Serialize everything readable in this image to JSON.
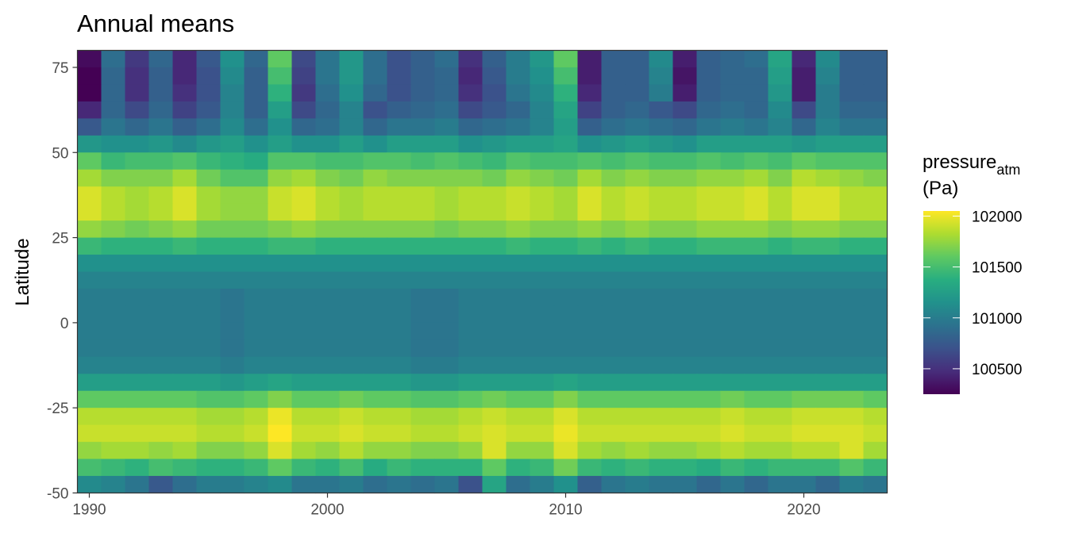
{
  "chart_data": {
    "type": "heatmap",
    "title": "Annual means",
    "xlabel": "",
    "ylabel": "Latitude",
    "x_ticks": [
      1990,
      2000,
      2010,
      2020
    ],
    "y_ticks": [
      75,
      50,
      25,
      0,
      -25,
      -50
    ],
    "xlim": [
      1989.5,
      2023.5
    ],
    "ylim": [
      -50,
      80
    ],
    "years": [
      1990,
      1991,
      1992,
      1993,
      1994,
      1995,
      1996,
      1997,
      1998,
      1999,
      2000,
      2001,
      2002,
      2003,
      2004,
      2005,
      2006,
      2007,
      2008,
      2009,
      2010,
      2011,
      2012,
      2013,
      2014,
      2015,
      2016,
      2017,
      2018,
      2019,
      2020,
      2021,
      2022,
      2023
    ],
    "latitude_bands": [
      {
        "lat": 77.5,
        "values": [
          100300,
          100900,
          100550,
          100850,
          100450,
          100750,
          101150,
          100850,
          101600,
          100650,
          100950,
          101200,
          100900,
          100700,
          100800,
          100900,
          100500,
          100800,
          101000,
          101200,
          101600,
          100400,
          100800,
          100800,
          101100,
          100400,
          100800,
          100850,
          100900,
          101300,
          100450,
          101100,
          100800,
          100800
        ]
      },
      {
        "lat": 72.5,
        "values": [
          100250,
          100850,
          100500,
          100800,
          100450,
          100700,
          101100,
          100800,
          101500,
          100600,
          100950,
          101200,
          100900,
          100700,
          100800,
          100850,
          100450,
          100750,
          101000,
          101150,
          101500,
          100400,
          100800,
          100800,
          101050,
          100350,
          100800,
          100850,
          100850,
          101250,
          100400,
          101050,
          100800,
          100800
        ]
      },
      {
        "lat": 67.5,
        "values": [
          100250,
          100850,
          100500,
          100800,
          100500,
          100700,
          101050,
          100800,
          101400,
          100550,
          100900,
          101150,
          100850,
          100700,
          100800,
          100850,
          100500,
          100700,
          100950,
          101100,
          101400,
          100450,
          100800,
          100800,
          101000,
          100400,
          100800,
          100850,
          100850,
          101200,
          100400,
          101000,
          100800,
          100800
        ]
      },
      {
        "lat": 62.5,
        "values": [
          100450,
          100850,
          100650,
          100850,
          100600,
          100750,
          101050,
          100800,
          101250,
          100650,
          100850,
          101050,
          100700,
          100800,
          100850,
          100900,
          100650,
          100750,
          100850,
          101050,
          101300,
          100600,
          100800,
          100850,
          100750,
          100650,
          100850,
          100900,
          100850,
          101100,
          100650,
          101000,
          100850,
          100850
        ]
      },
      {
        "lat": 57.5,
        "values": [
          100750,
          100950,
          100850,
          100950,
          100800,
          100900,
          101100,
          100900,
          101150,
          100850,
          100900,
          101050,
          100850,
          100950,
          100950,
          101000,
          100850,
          100900,
          100950,
          101050,
          101250,
          100800,
          100900,
          100950,
          100900,
          100850,
          100950,
          101000,
          100950,
          101050,
          100850,
          101050,
          100950,
          100950
        ]
      },
      {
        "lat": 52.5,
        "values": [
          101200,
          101150,
          101150,
          101200,
          101100,
          101200,
          101250,
          101150,
          101250,
          101150,
          101150,
          101250,
          101150,
          101250,
          101250,
          101250,
          101150,
          101200,
          101250,
          101250,
          101300,
          101150,
          101200,
          101250,
          101200,
          101150,
          101250,
          101250,
          101250,
          101250,
          101200,
          101250,
          101250,
          101250
        ]
      },
      {
        "lat": 47.5,
        "values": [
          101600,
          101450,
          101500,
          101500,
          101550,
          101450,
          101400,
          101350,
          101550,
          101550,
          101500,
          101500,
          101550,
          101550,
          101500,
          101550,
          101500,
          101450,
          101550,
          101500,
          101500,
          101550,
          101500,
          101550,
          101500,
          101500,
          101550,
          101500,
          101550,
          101500,
          101600,
          101550,
          101550,
          101550
        ]
      },
      {
        "lat": 42.5,
        "values": [
          101800,
          101700,
          101700,
          101700,
          101800,
          101650,
          101550,
          101550,
          101750,
          101800,
          101700,
          101650,
          101750,
          101700,
          101700,
          101700,
          101700,
          101650,
          101750,
          101700,
          101650,
          101800,
          101700,
          101750,
          101700,
          101700,
          101750,
          101750,
          101800,
          101700,
          101850,
          101800,
          101750,
          101700
        ]
      },
      {
        "lat": 37.5,
        "values": [
          101950,
          101850,
          101800,
          101850,
          101950,
          101800,
          101750,
          101750,
          101900,
          101950,
          101850,
          101800,
          101850,
          101850,
          101850,
          101800,
          101850,
          101850,
          101900,
          101850,
          101800,
          101950,
          101850,
          101900,
          101850,
          101850,
          101900,
          101900,
          101950,
          101850,
          101950,
          101950,
          101850,
          101850
        ]
      },
      {
        "lat": 32.5,
        "values": [
          101950,
          101850,
          101800,
          101850,
          101950,
          101800,
          101750,
          101750,
          101900,
          101950,
          101850,
          101800,
          101850,
          101850,
          101850,
          101800,
          101850,
          101850,
          101900,
          101850,
          101800,
          101950,
          101850,
          101900,
          101850,
          101850,
          101900,
          101900,
          101950,
          101850,
          101950,
          101950,
          101850,
          101850
        ]
      },
      {
        "lat": 27.5,
        "values": [
          101750,
          101700,
          101650,
          101700,
          101750,
          101650,
          101650,
          101650,
          101700,
          101750,
          101700,
          101700,
          101700,
          101700,
          101700,
          101650,
          101700,
          101700,
          101750,
          101700,
          101700,
          101750,
          101700,
          101750,
          101700,
          101700,
          101750,
          101750,
          101750,
          101700,
          101750,
          101750,
          101700,
          101700
        ]
      },
      {
        "lat": 22.5,
        "values": [
          101450,
          101400,
          101400,
          101400,
          101450,
          101400,
          101400,
          101400,
          101450,
          101450,
          101400,
          101400,
          101400,
          101400,
          101400,
          101400,
          101400,
          101400,
          101450,
          101400,
          101400,
          101450,
          101400,
          101450,
          101400,
          101400,
          101450,
          101450,
          101450,
          101400,
          101450,
          101450,
          101400,
          101400
        ]
      },
      {
        "lat": 17.5,
        "values": [
          101150,
          101150,
          101150,
          101150,
          101150,
          101150,
          101150,
          101150,
          101150,
          101150,
          101150,
          101150,
          101150,
          101150,
          101150,
          101150,
          101150,
          101150,
          101150,
          101150,
          101150,
          101150,
          101150,
          101150,
          101150,
          101150,
          101150,
          101150,
          101150,
          101150,
          101150,
          101150,
          101150,
          101150
        ]
      },
      {
        "lat": 12.5,
        "values": [
          101050,
          101050,
          101050,
          101050,
          101050,
          101050,
          101050,
          101050,
          101050,
          101050,
          101050,
          101050,
          101050,
          101050,
          101050,
          101050,
          101050,
          101050,
          101050,
          101050,
          101050,
          101050,
          101050,
          101050,
          101050,
          101050,
          101050,
          101050,
          101050,
          101050,
          101050,
          101050,
          101050,
          101050
        ]
      },
      {
        "lat": 7.5,
        "values": [
          101000,
          101000,
          101000,
          101000,
          101000,
          101000,
          100950,
          101000,
          101000,
          101000,
          101000,
          101000,
          101000,
          101000,
          100950,
          100950,
          101000,
          101000,
          101000,
          101000,
          101000,
          101000,
          101000,
          101000,
          101000,
          101000,
          101000,
          101000,
          101000,
          101000,
          101000,
          101000,
          101000,
          101000
        ]
      },
      {
        "lat": 2.5,
        "values": [
          101000,
          101000,
          101000,
          101000,
          101000,
          101000,
          100950,
          101000,
          101000,
          101000,
          101000,
          101000,
          101000,
          101000,
          100950,
          100950,
          101000,
          101000,
          101000,
          101000,
          101000,
          101000,
          101000,
          101000,
          101000,
          101000,
          101000,
          101000,
          101000,
          101000,
          101000,
          101000,
          101000,
          101000
        ]
      },
      {
        "lat": -2.5,
        "values": [
          101000,
          101000,
          101000,
          101000,
          101000,
          101000,
          100950,
          101000,
          101000,
          101000,
          101000,
          101000,
          101000,
          101000,
          100950,
          100950,
          101000,
          101000,
          101000,
          101000,
          101000,
          101000,
          101000,
          101000,
          101000,
          101000,
          101000,
          101000,
          101000,
          101000,
          101000,
          101000,
          101000,
          101000
        ]
      },
      {
        "lat": -7.5,
        "values": [
          101000,
          101000,
          101000,
          101000,
          101000,
          101000,
          100950,
          101000,
          101000,
          101000,
          101000,
          101000,
          101000,
          101000,
          100950,
          100950,
          101000,
          101000,
          101000,
          101000,
          101000,
          101000,
          101000,
          101000,
          101000,
          101000,
          101000,
          101000,
          101000,
          101000,
          101000,
          101000,
          101000,
          101000
        ]
      },
      {
        "lat": -12.5,
        "values": [
          101050,
          101050,
          101050,
          101050,
          101050,
          101050,
          101000,
          101050,
          101050,
          101050,
          101050,
          101050,
          101050,
          101050,
          101000,
          101000,
          101050,
          101050,
          101050,
          101050,
          101050,
          101050,
          101050,
          101050,
          101050,
          101050,
          101050,
          101050,
          101050,
          101050,
          101050,
          101050,
          101050,
          101050
        ]
      },
      {
        "lat": -17.5,
        "values": [
          101250,
          101250,
          101250,
          101250,
          101250,
          101250,
          101200,
          101250,
          101300,
          101250,
          101250,
          101250,
          101250,
          101250,
          101200,
          101200,
          101250,
          101250,
          101250,
          101250,
          101300,
          101250,
          101250,
          101250,
          101250,
          101250,
          101250,
          101250,
          101250,
          101250,
          101250,
          101250,
          101250,
          101250
        ]
      },
      {
        "lat": -22.5,
        "values": [
          101600,
          101600,
          101600,
          101600,
          101600,
          101550,
          101550,
          101600,
          101700,
          101600,
          101600,
          101650,
          101600,
          101600,
          101550,
          101550,
          101600,
          101650,
          101600,
          101600,
          101700,
          101600,
          101600,
          101600,
          101600,
          101600,
          101600,
          101650,
          101600,
          101600,
          101650,
          101650,
          101650,
          101600
        ]
      },
      {
        "lat": -27.5,
        "values": [
          101850,
          101850,
          101850,
          101850,
          101850,
          101800,
          101800,
          101850,
          102000,
          101850,
          101850,
          101900,
          101850,
          101850,
          101800,
          101800,
          101850,
          101900,
          101850,
          101850,
          101950,
          101850,
          101850,
          101850,
          101850,
          101850,
          101850,
          101900,
          101850,
          101850,
          101900,
          101900,
          101900,
          101850
        ]
      },
      {
        "lat": -32.5,
        "values": [
          101900,
          101900,
          101900,
          101900,
          101900,
          101850,
          101850,
          101900,
          102050,
          101900,
          101900,
          101950,
          101900,
          101900,
          101850,
          101850,
          101900,
          101950,
          101900,
          101900,
          102000,
          101900,
          101900,
          101900,
          101900,
          101900,
          101900,
          101950,
          101900,
          101900,
          101950,
          101950,
          101950,
          101900
        ]
      },
      {
        "lat": -37.5,
        "values": [
          101750,
          101800,
          101800,
          101750,
          101800,
          101700,
          101700,
          101750,
          101950,
          101800,
          101750,
          101850,
          101750,
          101750,
          101700,
          101700,
          101750,
          101950,
          101750,
          101750,
          101950,
          101800,
          101750,
          101800,
          101750,
          101750,
          101800,
          101850,
          101800,
          101800,
          101850,
          101850,
          101950,
          101800
        ]
      },
      {
        "lat": -42.5,
        "values": [
          101500,
          101450,
          101400,
          101500,
          101450,
          101400,
          101400,
          101450,
          101600,
          101450,
          101400,
          101500,
          101350,
          101450,
          101400,
          101400,
          101400,
          101600,
          101400,
          101450,
          101650,
          101450,
          101400,
          101450,
          101400,
          101400,
          101350,
          101450,
          101400,
          101450,
          101450,
          101450,
          101550,
          101450
        ]
      },
      {
        "lat": -47.5,
        "values": [
          101100,
          101050,
          100950,
          100750,
          100900,
          101000,
          101000,
          101050,
          101100,
          100950,
          100950,
          101000,
          100900,
          100950,
          100900,
          100950,
          100700,
          101300,
          100900,
          101000,
          101150,
          100800,
          100950,
          101000,
          100950,
          100950,
          100850,
          100950,
          100850,
          100950,
          100950,
          100850,
          101000,
          100950
        ]
      }
    ],
    "legend": {
      "title_main": "pressure",
      "title_sub": "atm",
      "title_unit": "(Pa)",
      "scale": "viridis",
      "range": [
        100250,
        102050
      ],
      "ticks": [
        102000,
        101500,
        101000,
        100500
      ],
      "tick_labels": [
        "102000",
        "101500",
        "101000",
        "100500"
      ],
      "placement": "right"
    }
  }
}
